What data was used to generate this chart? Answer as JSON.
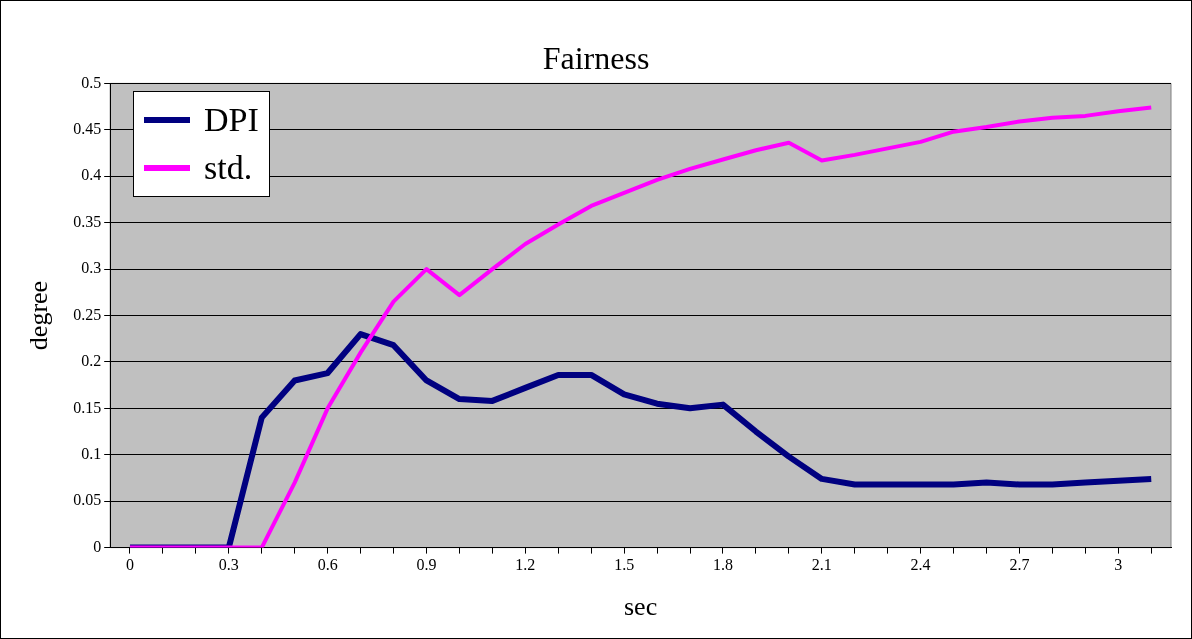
{
  "chart_data": {
    "type": "line",
    "title": "Fairness",
    "xlabel": "sec",
    "ylabel": "degree",
    "x": [
      0,
      0.1,
      0.2,
      0.3,
      0.4,
      0.5,
      0.6,
      0.7,
      0.8,
      0.9,
      1.0,
      1.1,
      1.2,
      1.3,
      1.4,
      1.5,
      1.6,
      1.7,
      1.8,
      1.9,
      2.0,
      2.1,
      2.2,
      2.3,
      2.4,
      2.5,
      2.6,
      2.7,
      2.8,
      2.9,
      3.0,
      3.1
    ],
    "series": [
      {
        "name": "DPI",
        "color": "#000080",
        "values": [
          0,
          0,
          0,
          0,
          0.14,
          0.18,
          0.188,
          0.23,
          0.218,
          0.18,
          0.16,
          0.158,
          0.172,
          0.186,
          0.186,
          0.165,
          0.155,
          0.15,
          0.154,
          0.125,
          0.098,
          0.074,
          0.068,
          0.068,
          0.068,
          0.068,
          0.07,
          0.068,
          0.068,
          0.07,
          0.072,
          0.074
        ]
      },
      {
        "name": "std.",
        "color": "#ff00ff",
        "values": [
          0,
          0,
          0,
          0,
          0,
          0.07,
          0.15,
          0.21,
          0.265,
          0.3,
          0.272,
          0.3,
          0.327,
          0.348,
          0.368,
          0.382,
          0.396,
          0.408,
          0.418,
          0.428,
          0.436,
          0.417,
          0.423,
          0.43,
          0.437,
          0.448,
          0.453,
          0.459,
          0.463,
          0.465,
          0.47,
          0.474
        ]
      }
    ],
    "xlim": [
      -0.06,
      3.16
    ],
    "xticks": [
      0,
      {
        "value": 0.1,
        "label": null
      },
      {
        "value": 0.2,
        "label": null
      },
      0.3,
      {
        "value": 0.4,
        "label": null
      },
      {
        "value": 0.5,
        "label": null
      },
      0.6,
      {
        "value": 0.7,
        "label": null
      },
      {
        "value": 0.8,
        "label": null
      },
      0.9,
      {
        "value": 1.0,
        "label": null
      },
      {
        "value": 1.1,
        "label": null
      },
      1.2,
      {
        "value": 1.3,
        "label": null
      },
      {
        "value": 1.4,
        "label": null
      },
      1.5,
      {
        "value": 1.6,
        "label": null
      },
      {
        "value": 1.7,
        "label": null
      },
      1.8,
      {
        "value": 1.9,
        "label": null
      },
      {
        "value": 2.0,
        "label": null
      },
      2.1,
      {
        "value": 2.2,
        "label": null
      },
      {
        "value": 2.3,
        "label": null
      },
      2.4,
      {
        "value": 2.5,
        "label": null
      },
      {
        "value": 2.6,
        "label": null
      },
      2.7,
      {
        "value": 2.8,
        "label": null
      },
      {
        "value": 2.9,
        "label": null
      },
      3,
      {
        "value": 3.1,
        "label": null
      }
    ],
    "ylim": [
      0,
      0.5
    ],
    "yticks": [
      0,
      0.05,
      0.1,
      0.15,
      0.2,
      0.25,
      0.3,
      0.35,
      0.4,
      0.45,
      0.5
    ],
    "grid": "y",
    "legend": "top left",
    "marker": "none",
    "line_style": "solid"
  }
}
